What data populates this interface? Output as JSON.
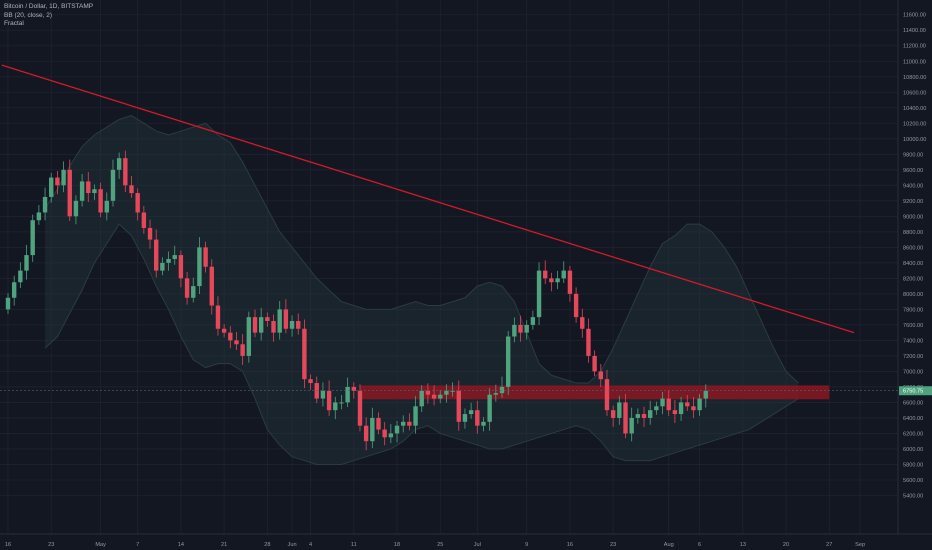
{
  "legend": {
    "title": "Bitcoin / Dollar, 1D, BITSTAMP",
    "bb": "BB (20, close, 2)",
    "fractal": "Fractal"
  },
  "colors": {
    "background": "#131722",
    "grid": "#1f2330",
    "up": "#4fa37f",
    "down": "#e5475b",
    "trendline": "#d11a2a",
    "zone": "#8a1822",
    "band": "#2b3b42",
    "price_tag": "#4fa37f"
  },
  "last_price_label": "6750.75",
  "chart_data": {
    "type": "candlestick",
    "symbol": "Bitcoin / Dollar",
    "timeframe": "1D",
    "exchange": "BITSTAMP",
    "indicators": [
      "BB (20, close, 2)",
      "Fractal"
    ],
    "y_ticks": [
      5400,
      5600,
      5800,
      6000,
      6200,
      6400,
      6600,
      6800,
      7000,
      7200,
      7400,
      7600,
      7800,
      8000,
      8200,
      8400,
      8600,
      8800,
      9000,
      9200,
      9400,
      9600,
      9800,
      10000,
      10200,
      10400,
      10600,
      10800,
      11000,
      11200,
      11400,
      11600
    ],
    "y_tick_labels": [
      "5400.00",
      "5600.00",
      "5800.00",
      "6000.00",
      "6200.00",
      "6400.00",
      "6600.00",
      "6800.00",
      "7000.00",
      "7200.00",
      "7400.00",
      "7600.00",
      "7800.00",
      "8000.00",
      "8200.00",
      "8400.00",
      "8600.00",
      "8800.00",
      "9000.00",
      "9200.00",
      "9400.00",
      "9600.00",
      "9800.00",
      "10000.00",
      "10200.00",
      "10400.00",
      "10600.00",
      "10800.00",
      "11000.00",
      "11200.00",
      "11400.00",
      "11600.00"
    ],
    "y_range": [
      5290,
      11790
    ],
    "x_range": [
      0,
      125
    ],
    "x_ticks": [
      {
        "label": "16",
        "day": 0
      },
      {
        "label": "23",
        "day": 7
      },
      {
        "label": "May",
        "day": 15
      },
      {
        "label": "7",
        "day": 21
      },
      {
        "label": "14",
        "day": 28
      },
      {
        "label": "21",
        "day": 35
      },
      {
        "label": "28",
        "day": 42
      },
      {
        "label": "Jun",
        "day": 46
      },
      {
        "label": "4",
        "day": 49
      },
      {
        "label": "11",
        "day": 56
      },
      {
        "label": "18",
        "day": 63
      },
      {
        "label": "25",
        "day": 70
      },
      {
        "label": "Jul",
        "day": 76
      },
      {
        "label": "9",
        "day": 84
      },
      {
        "label": "16",
        "day": 91
      },
      {
        "label": "23",
        "day": 98
      },
      {
        "label": "Aug",
        "day": 107
      },
      {
        "label": "6",
        "day": 112
      },
      {
        "label": "13",
        "day": 119
      },
      {
        "label": "20",
        "day": 126
      },
      {
        "label": "27",
        "day": 133
      },
      {
        "label": "Sep",
        "day": 138
      }
    ],
    "candle_closes": [
      7950,
      8150,
      8300,
      8500,
      8950,
      9050,
      9250,
      9500,
      9400,
      9600,
      9000,
      9200,
      9450,
      9300,
      9350,
      9050,
      9200,
      9600,
      9750,
      9400,
      9300,
      9050,
      8850,
      8700,
      8300,
      8400,
      8450,
      8500,
      8200,
      7950,
      8100,
      8600,
      8350,
      7850,
      7550,
      7500,
      7400,
      7350,
      7200,
      7700,
      7500,
      7700,
      7650,
      7500,
      7800,
      7550,
      7650,
      7550,
      6900,
      6850,
      6650,
      6750,
      6500,
      6600,
      6600,
      6800,
      6750,
      6300,
      6100,
      6400,
      6250,
      6150,
      6200,
      6300,
      6350,
      6300,
      6550,
      6750,
      6700,
      6650,
      6700,
      6750,
      6750,
      6350,
      6450,
      6500,
      6300,
      6350,
      6700,
      6720,
      6800,
      7450,
      7600,
      7500,
      7600,
      7700,
      8300,
      8200,
      8150,
      8200,
      8300,
      8000,
      7700,
      7550,
      7200,
      7000,
      6900,
      6500,
      6400,
      6600,
      6200,
      6400,
      6450,
      6400,
      6500,
      6550,
      6650,
      6500,
      6450,
      6600,
      6550,
      6500,
      6650,
      6750
    ],
    "bollinger_upper": [
      9100,
      9350,
      9650,
      9900,
      10050,
      10150,
      10250,
      10300,
      10200,
      10100,
      10050,
      10100,
      10150,
      10200,
      10050,
      9950,
      9700,
      9400,
      9100,
      8800,
      8600,
      8400,
      8200,
      8050,
      7900,
      7850,
      7800,
      7800,
      7800,
      7850,
      7900,
      7850,
      7850,
      7900,
      7950,
      8100,
      8150,
      8100,
      7900,
      7500,
      7100,
      6950,
      6900,
      6850,
      6850,
      7000,
      7300,
      7650,
      8000,
      8350,
      8650,
      8750,
      8900,
      8900,
      8800,
      8600,
      8350,
      8000,
      7650,
      7300,
      7000,
      6850
    ],
    "bollinger_lower": [
      7300,
      7450,
      7750,
      8050,
      8400,
      8650,
      8900,
      8750,
      8450,
      8100,
      7800,
      7450,
      7150,
      7050,
      7100,
      7100,
      7000,
      6650,
      6250,
      6050,
      5900,
      5850,
      5800,
      5800,
      5800,
      5850,
      5900,
      5950,
      6000,
      6100,
      6250,
      6300,
      6200,
      6150,
      6100,
      6050,
      6000,
      6000,
      6050,
      6100,
      6150,
      6200,
      6250,
      6300,
      6250,
      6100,
      5900,
      5850,
      5850,
      5850,
      5900,
      5950,
      6000,
      6050,
      6100,
      6150,
      6200,
      6250,
      6350,
      6450,
      6550,
      6650
    ],
    "trendline": {
      "start": {
        "day": -1,
        "price": 10950
      },
      "end": {
        "day": 137,
        "price": 7500
      }
    },
    "resistance_zone": {
      "low": 6640,
      "high": 6820,
      "start_day": 57,
      "end_day": 133
    },
    "current_price": 6750.75
  }
}
